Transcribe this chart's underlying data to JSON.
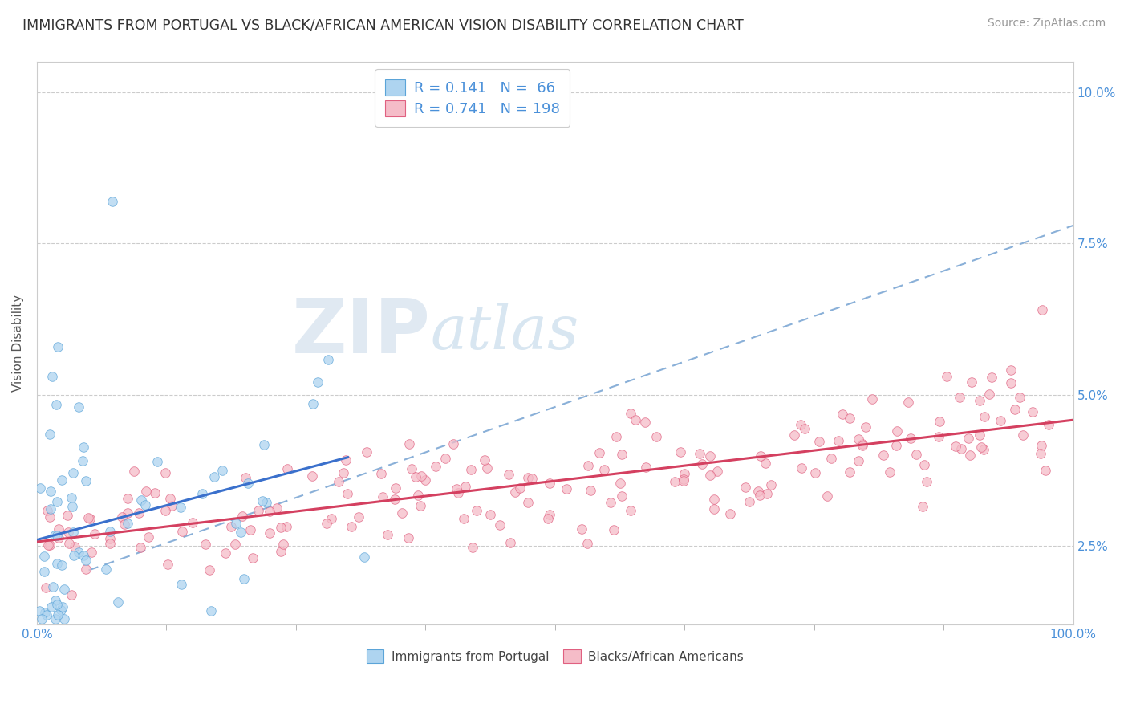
{
  "title": "IMMIGRANTS FROM PORTUGAL VS BLACK/AFRICAN AMERICAN VISION DISABILITY CORRELATION CHART",
  "source": "Source: ZipAtlas.com",
  "ylabel": "Vision Disability",
  "xlim": [
    0,
    1.0
  ],
  "ylim": [
    0.012,
    0.105
  ],
  "ytick_labels": [
    "2.5%",
    "5.0%",
    "7.5%",
    "10.0%"
  ],
  "ytick_values": [
    0.025,
    0.05,
    0.075,
    0.1
  ],
  "legend_r1": "R = 0.141",
  "legend_n1": "N =  66",
  "legend_r2": "R = 0.741",
  "legend_n2": "N = 198",
  "color_blue_fill": "#AED4F0",
  "color_blue_edge": "#5BA4D8",
  "color_pink_fill": "#F5BCC8",
  "color_pink_edge": "#E06080",
  "color_line_blue": "#3A70CC",
  "color_line_pink": "#D44060",
  "color_dashed": "#8AB0D8",
  "color_grid": "#CCCCCC",
  "background_color": "#FFFFFF",
  "watermark_zip": "ZIP",
  "watermark_atlas": "atlas",
  "title_fontsize": 12.5,
  "source_fontsize": 10,
  "legend_fontsize": 13,
  "axis_label_color": "#555555",
  "tick_color": "#4A90D9",
  "legend_text_color": "#4A90D9"
}
